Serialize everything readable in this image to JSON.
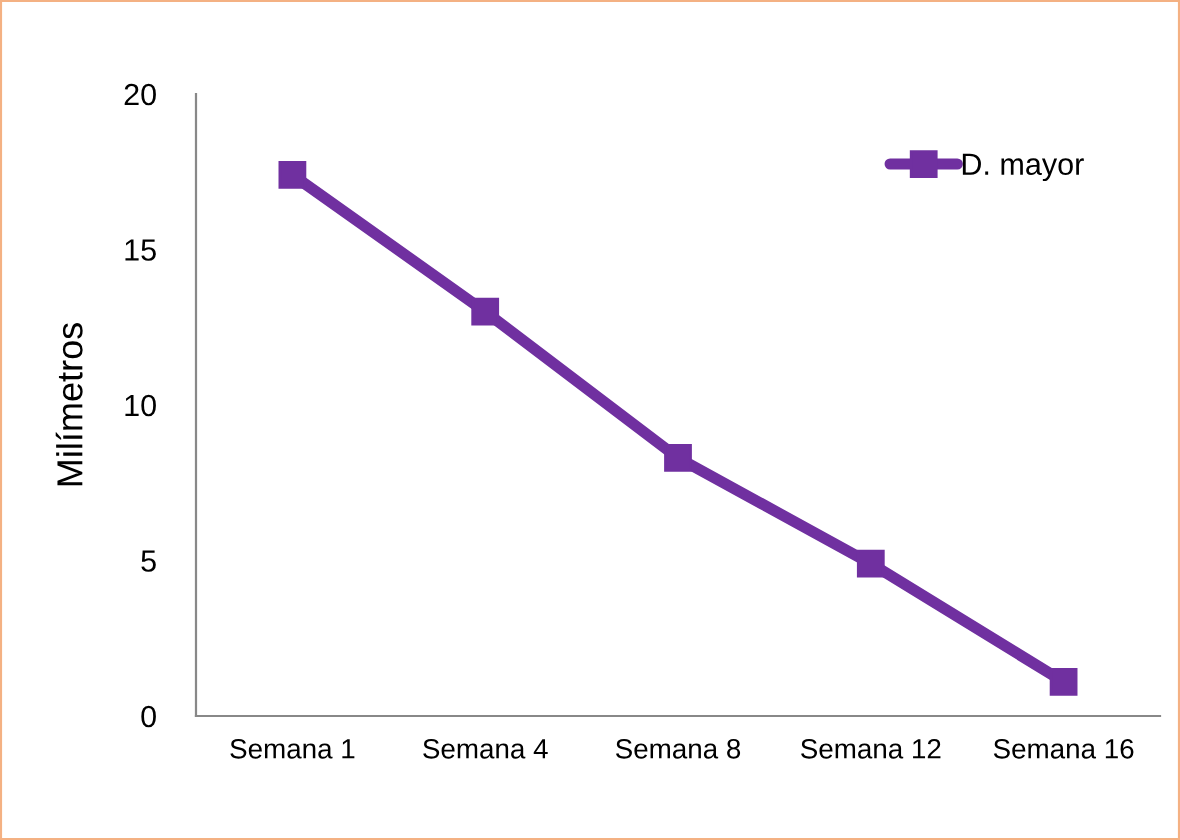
{
  "chart_data": {
    "type": "line",
    "ylabel": "Milímetros",
    "categories": [
      "Semana 1",
      "Semana 4",
      "Semana 8",
      "Semana 12",
      "Semana 16"
    ],
    "series": [
      {
        "name": "D. mayor",
        "color": "#7030a0",
        "values": [
          17.4,
          13.0,
          8.3,
          4.9,
          1.1
        ]
      }
    ],
    "ylim": [
      0,
      20
    ],
    "yticks": [
      0,
      5,
      10,
      15,
      20
    ],
    "grid": false,
    "legend": "top right",
    "marker": "square",
    "line_style": "solid"
  }
}
